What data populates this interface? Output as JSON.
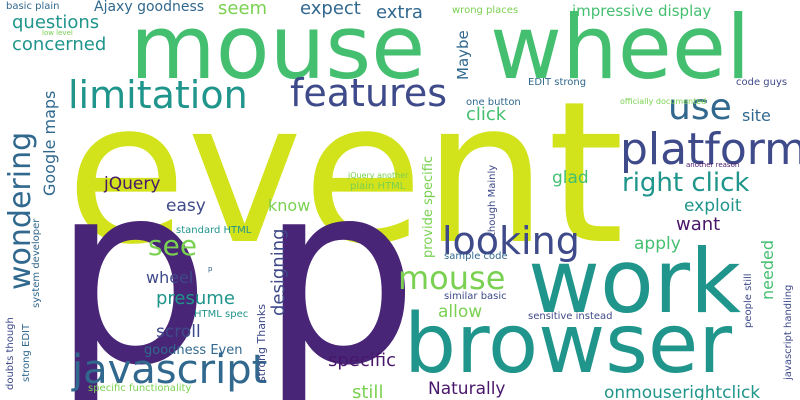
{
  "colors": {
    "background": "#ffffff",
    "yellow_green": "#d2e21b",
    "deep_purple": "#482576",
    "teal": "#1f958b",
    "green": "#44bf70",
    "light_green": "#7ad151",
    "blue": "#31688e",
    "slate_blue": "#3e4a89",
    "dark_purple": "#481769"
  },
  "words": [
    {
      "text": "event",
      "color": "#d2e21b",
      "orientation": "horizontal"
    },
    {
      "text": "p",
      "color": "#482576",
      "orientation": "horizontal"
    },
    {
      "text": "p",
      "color": "#482576",
      "orientation": "horizontal"
    },
    {
      "text": "mouse",
      "color": "#44bf70",
      "orientation": "horizontal"
    },
    {
      "text": "wheel",
      "color": "#44bf70",
      "orientation": "horizontal"
    },
    {
      "text": "work",
      "color": "#1f958b",
      "orientation": "horizontal"
    },
    {
      "text": "browser",
      "color": "#1f958b",
      "orientation": "horizontal"
    },
    {
      "text": "platform",
      "color": "#3e4a89",
      "orientation": "horizontal"
    },
    {
      "text": "limitation",
      "color": "#1f958b",
      "orientation": "horizontal"
    },
    {
      "text": "features",
      "color": "#3e4a89",
      "orientation": "horizontal"
    },
    {
      "text": "javascript",
      "color": "#31688e",
      "orientation": "horizontal"
    },
    {
      "text": "looking",
      "color": "#3e4a89",
      "orientation": "horizontal"
    },
    {
      "text": "mouse",
      "color": "#7ad151",
      "orientation": "horizontal"
    },
    {
      "text": "right click",
      "color": "#1f958b",
      "orientation": "horizontal"
    },
    {
      "text": "use",
      "color": "#31688e",
      "orientation": "horizontal"
    },
    {
      "text": "wondering",
      "color": "#31688e",
      "orientation": "vertical"
    },
    {
      "text": "see",
      "color": "#7ad151",
      "orientation": "horizontal"
    },
    {
      "text": "questions",
      "color": "#1f958b",
      "orientation": "horizontal"
    },
    {
      "text": "concerned",
      "color": "#1f958b",
      "orientation": "horizontal"
    },
    {
      "text": "Ajaxy goodness",
      "color": "#31688e",
      "orientation": "horizontal"
    },
    {
      "text": "seem",
      "color": "#7ad151",
      "orientation": "horizontal"
    },
    {
      "text": "expect",
      "color": "#31688e",
      "orientation": "horizontal"
    },
    {
      "text": "extra",
      "color": "#31688e",
      "orientation": "horizontal"
    },
    {
      "text": "wrong places",
      "color": "#7ad151",
      "orientation": "horizontal"
    },
    {
      "text": "impressive display",
      "color": "#44bf70",
      "orientation": "horizontal"
    },
    {
      "text": "basic plain",
      "color": "#31688e",
      "orientation": "horizontal"
    },
    {
      "text": "low level",
      "color": "#7ad151",
      "orientation": "horizontal"
    },
    {
      "text": "Google maps",
      "color": "#31688e",
      "orientation": "vertical"
    },
    {
      "text": "Maybe",
      "color": "#31688e",
      "orientation": "vertical"
    },
    {
      "text": "click",
      "color": "#44bf70",
      "orientation": "horizontal"
    },
    {
      "text": "EDIT strong",
      "color": "#31688e",
      "orientation": "horizontal"
    },
    {
      "text": "code guys",
      "color": "#3e4a89",
      "orientation": "horizontal"
    },
    {
      "text": "one button",
      "color": "#31688e",
      "orientation": "horizontal"
    },
    {
      "text": "officially documented",
      "color": "#7ad151",
      "orientation": "horizontal"
    },
    {
      "text": "site",
      "color": "#31688e",
      "orientation": "horizontal"
    },
    {
      "text": "jQuery",
      "color": "#481769",
      "orientation": "horizontal"
    },
    {
      "text": "easy",
      "color": "#3e4a89",
      "orientation": "horizontal"
    },
    {
      "text": "know",
      "color": "#7ad151",
      "orientation": "horizontal"
    },
    {
      "text": "glad",
      "color": "#44bf70",
      "orientation": "horizontal"
    },
    {
      "text": "exploit",
      "color": "#1f958b",
      "orientation": "horizontal"
    },
    {
      "text": "want",
      "color": "#481769",
      "orientation": "horizontal"
    },
    {
      "text": "apply",
      "color": "#44bf70",
      "orientation": "horizontal"
    },
    {
      "text": "needed",
      "color": "#44bf70",
      "orientation": "vertical"
    },
    {
      "text": "another reason",
      "color": "#481769",
      "orientation": "horizontal"
    },
    {
      "text": "jQuery another",
      "color": "#7ad151",
      "orientation": "horizontal"
    },
    {
      "text": "plain HTML",
      "color": "#7ad151",
      "orientation": "horizontal"
    },
    {
      "text": "though Mainly",
      "color": "#3e4a89",
      "orientation": "vertical"
    },
    {
      "text": "provide specific",
      "color": "#7ad151",
      "orientation": "vertical"
    },
    {
      "text": "standard HTML",
      "color": "#1f958b",
      "orientation": "horizontal"
    },
    {
      "text": "system developer",
      "color": "#31688e",
      "orientation": "vertical"
    },
    {
      "text": "wheel",
      "color": "#3e4a89",
      "orientation": "horizontal"
    },
    {
      "text": "p",
      "color": "#31688e",
      "orientation": "horizontal"
    },
    {
      "text": "presume",
      "color": "#1f958b",
      "orientation": "horizontal"
    },
    {
      "text": "designing",
      "color": "#3e4a89",
      "orientation": "vertical"
    },
    {
      "text": "HTML spec",
      "color": "#1f958b",
      "orientation": "horizontal"
    },
    {
      "text": "scroll",
      "color": "#3e4a89",
      "orientation": "horizontal"
    },
    {
      "text": "strong Thanks",
      "color": "#3e4a89",
      "orientation": "vertical"
    },
    {
      "text": "goodness Even",
      "color": "#31688e",
      "orientation": "horizontal"
    },
    {
      "text": "sample code",
      "color": "#31688e",
      "orientation": "horizontal"
    },
    {
      "text": "allow",
      "color": "#7ad151",
      "orientation": "horizontal"
    },
    {
      "text": "similar basic",
      "color": "#3e4a89",
      "orientation": "horizontal"
    },
    {
      "text": "sensitive instead",
      "color": "#3e4a89",
      "orientation": "horizontal"
    },
    {
      "text": "specific",
      "color": "#481769",
      "orientation": "horizontal"
    },
    {
      "text": "still",
      "color": "#7ad151",
      "orientation": "horizontal"
    },
    {
      "text": "Naturally",
      "color": "#481769",
      "orientation": "horizontal"
    },
    {
      "text": "onmouserightclick",
      "color": "#1f958b",
      "orientation": "horizontal"
    },
    {
      "text": "people still",
      "color": "#3e4a89",
      "orientation": "vertical"
    },
    {
      "text": "javascript handling",
      "color": "#3e4a89",
      "orientation": "vertical"
    },
    {
      "text": "doubts though",
      "color": "#3e4a89",
      "orientation": "vertical"
    },
    {
      "text": "strong EDIT",
      "color": "#31688e",
      "orientation": "vertical"
    },
    {
      "text": "specific functionality",
      "color": "#7ad151",
      "orientation": "horizontal"
    }
  ]
}
